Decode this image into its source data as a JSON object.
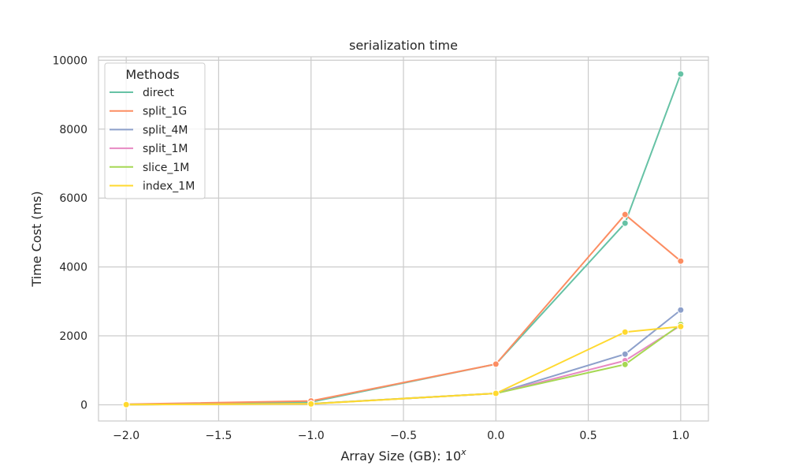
{
  "chart_data": {
    "type": "line",
    "title": "serialization time",
    "xlabel": "Array Size (GB): 10",
    "xlabel_superscript": "x",
    "ylabel": "Time Cost (ms)",
    "xlim": [
      -2.15,
      1.15
    ],
    "ylim": [
      -470,
      10100
    ],
    "xticks": [
      -2.0,
      -1.5,
      -1.0,
      -0.5,
      0.0,
      0.5,
      1.0
    ],
    "xtick_labels": [
      "−2.0",
      "−1.5",
      "−1.0",
      "−0.5",
      "0.0",
      "0.5",
      "1.0"
    ],
    "yticks": [
      0,
      2000,
      4000,
      6000,
      8000,
      10000
    ],
    "ytick_labels": [
      "0",
      "2000",
      "4000",
      "6000",
      "8000",
      "10000"
    ],
    "grid": true,
    "legend": {
      "title": "Methods",
      "placement": "top-left"
    },
    "x": [
      -2.0,
      -1.0,
      0.0,
      0.699,
      1.0
    ],
    "series": [
      {
        "name": "direct",
        "color": "#66c2a5",
        "values": [
          10,
          80,
          1180,
          5270,
          9600
        ]
      },
      {
        "name": "split_1G",
        "color": "#fc8d62",
        "values": [
          15,
          110,
          1180,
          5520,
          4170
        ]
      },
      {
        "name": "split_4M",
        "color": "#8da0cb",
        "values": [
          5,
          30,
          330,
          1470,
          2750
        ]
      },
      {
        "name": "split_1M",
        "color": "#e78ac3",
        "values": [
          5,
          30,
          330,
          1280,
          2300
        ]
      },
      {
        "name": "slice_1M",
        "color": "#a6d854",
        "values": [
          5,
          30,
          330,
          1170,
          2330
        ]
      },
      {
        "name": "index_1M",
        "color": "#ffd92f",
        "values": [
          5,
          25,
          330,
          2110,
          2270
        ]
      }
    ]
  }
}
